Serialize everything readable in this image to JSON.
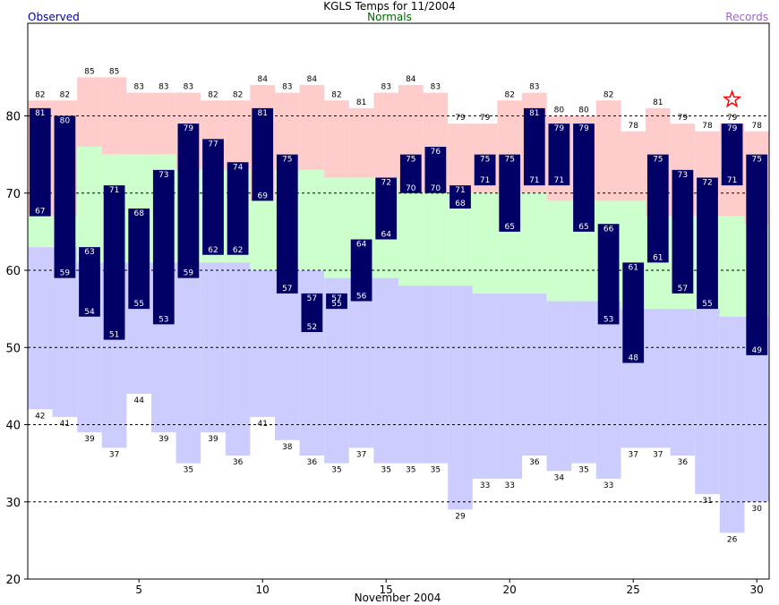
{
  "header": {
    "title": "KGLS Temps for 11/2004",
    "observed_label": "Observed",
    "normals_label": "Normals",
    "records_label": "Records"
  },
  "colors": {
    "observed": "#000066",
    "observed_label": "#000099",
    "normals_label": "#006600",
    "records_label": "#9966cc",
    "record_high_band": "#ffcccc",
    "normal_band": "#ccffcc",
    "record_low_band": "#ccccff",
    "record_marker": "#ff0000",
    "grid": "#000000"
  },
  "chart_data": {
    "type": "bar",
    "title": "KGLS Temps for 11/2004",
    "xlabel": "November 2004",
    "ylabel": "",
    "x": [
      1,
      2,
      3,
      4,
      5,
      6,
      7,
      8,
      9,
      10,
      11,
      12,
      13,
      14,
      15,
      16,
      17,
      18,
      19,
      20,
      21,
      22,
      23,
      24,
      25,
      26,
      27,
      28,
      29,
      30
    ],
    "xlim": [
      0.5,
      30.5
    ],
    "ylim": [
      20,
      92
    ],
    "yticks": [
      20,
      30,
      40,
      50,
      60,
      70,
      80
    ],
    "xticks": [
      5,
      10,
      15,
      20,
      25,
      30
    ],
    "grid": true,
    "grid_style": "dashed horizontal at 30, 40, 50, 60, 70, 80",
    "series": [
      {
        "name": "Observed",
        "kind": "high",
        "values": [
          81,
          80,
          63,
          71,
          68,
          73,
          79,
          77,
          74,
          81,
          75,
          57,
          57,
          64,
          72,
          75,
          76,
          71,
          75,
          75,
          81,
          79,
          79,
          66,
          61,
          75,
          73,
          72,
          79,
          75
        ]
      },
      {
        "name": "Observed",
        "kind": "low",
        "values": [
          67,
          59,
          54,
          51,
          55,
          53,
          59,
          62,
          62,
          69,
          57,
          52,
          55,
          56,
          64,
          70,
          70,
          68,
          71,
          65,
          71,
          71,
          65,
          53,
          48,
          61,
          57,
          55,
          71,
          49
        ]
      },
      {
        "name": "Normals",
        "kind": "high",
        "values": [
          67,
          67,
          76,
          75,
          75,
          75,
          73,
          73,
          73,
          69,
          73,
          73,
          72,
          72,
          72,
          70,
          70,
          70,
          70,
          70,
          70,
          69,
          69,
          69,
          69,
          67,
          67,
          67,
          67,
          66
        ]
      },
      {
        "name": "Normals",
        "kind": "low",
        "values": [
          63,
          63,
          61,
          61,
          61,
          61,
          61,
          61,
          61,
          60,
          60,
          60,
          59,
          59,
          59,
          58,
          58,
          58,
          57,
          57,
          57,
          56,
          56,
          56,
          55,
          55,
          55,
          55,
          54,
          54
        ]
      },
      {
        "name": "Records",
        "kind": "high",
        "values": [
          82,
          82,
          85,
          85,
          83,
          83,
          83,
          82,
          82,
          84,
          83,
          84,
          82,
          81,
          83,
          84,
          83,
          79,
          79,
          82,
          83,
          80,
          80,
          82,
          78,
          81,
          79,
          78,
          79,
          78
        ]
      },
      {
        "name": "Records",
        "kind": "low",
        "values": [
          42,
          41,
          39,
          37,
          44,
          39,
          35,
          39,
          36,
          41,
          38,
          36,
          35,
          37,
          35,
          35,
          35,
          29,
          33,
          33,
          36,
          34,
          35,
          33,
          37,
          37,
          36,
          31,
          26,
          30
        ]
      }
    ],
    "record_set": [
      {
        "x": 29,
        "value": 82
      }
    ]
  }
}
